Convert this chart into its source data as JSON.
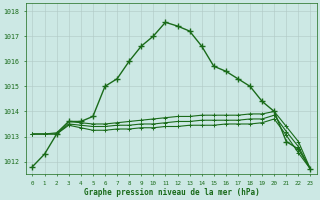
{
  "hours": [
    0,
    1,
    2,
    3,
    4,
    5,
    6,
    7,
    8,
    9,
    10,
    11,
    12,
    13,
    14,
    15,
    16,
    17,
    18,
    19,
    20,
    21,
    22,
    23
  ],
  "pressure_main": [
    1011.8,
    1012.3,
    1013.1,
    1013.6,
    1013.6,
    1013.8,
    1015.0,
    1015.3,
    1016.0,
    1016.6,
    1017.0,
    1017.55,
    1017.4,
    1017.2,
    1016.6,
    1015.8,
    1015.6,
    1015.3,
    1015.0,
    1014.4,
    1014.0,
    1012.8,
    1012.5,
    1011.7
  ],
  "pressure_flatA": [
    1013.1,
    1013.1,
    1013.15,
    1013.6,
    1013.55,
    1013.5,
    1013.5,
    1013.55,
    1013.6,
    1013.65,
    1013.7,
    1013.75,
    1013.8,
    1013.8,
    1013.85,
    1013.85,
    1013.85,
    1013.85,
    1013.9,
    1013.9,
    1014.0,
    1013.4,
    1012.8,
    1011.7
  ],
  "pressure_flatB": [
    1013.1,
    1013.1,
    1013.1,
    1013.5,
    1013.45,
    1013.4,
    1013.4,
    1013.45,
    1013.45,
    1013.5,
    1013.5,
    1013.55,
    1013.6,
    1013.6,
    1013.65,
    1013.65,
    1013.65,
    1013.65,
    1013.7,
    1013.7,
    1013.85,
    1013.2,
    1012.6,
    1011.7
  ],
  "pressure_flatC": [
    1013.1,
    1013.1,
    1013.1,
    1013.45,
    1013.35,
    1013.25,
    1013.25,
    1013.3,
    1013.3,
    1013.35,
    1013.35,
    1013.4,
    1013.4,
    1013.45,
    1013.45,
    1013.45,
    1013.5,
    1013.5,
    1013.5,
    1013.55,
    1013.7,
    1013.05,
    1012.35,
    1011.7
  ],
  "ylim_min": 1011.5,
  "ylim_max": 1018.3,
  "yticks": [
    1012,
    1013,
    1014,
    1015,
    1016,
    1017,
    1018
  ],
  "line_color": "#1a6b1a",
  "bg_color": "#cce8e4",
  "grid_color": "#b0c8c4",
  "xlabel": "Graphe pression niveau de la mer (hPa)"
}
